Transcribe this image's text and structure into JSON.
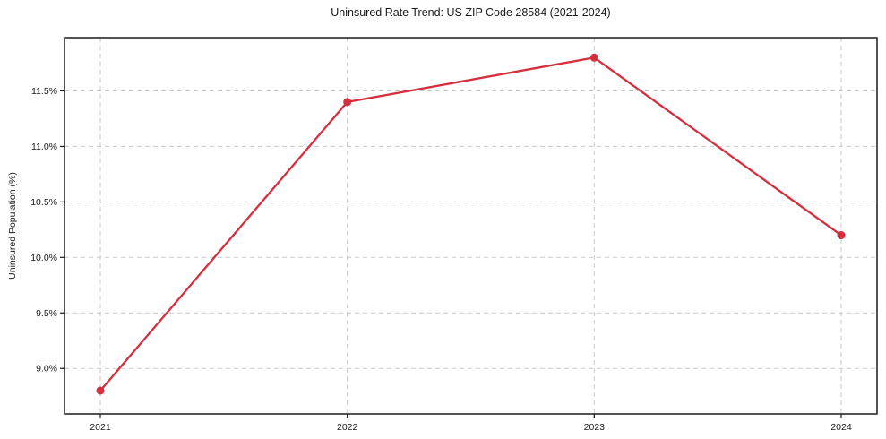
{
  "chart_data": {
    "type": "line",
    "title": "Uninsured Rate Trend: US ZIP Code 28584 (2021-2024)",
    "xlabel": "",
    "ylabel": "Uninsured Population (%)",
    "categories": [
      "2021",
      "2022",
      "2023",
      "2024"
    ],
    "series": [
      {
        "name": "Uninsured Population (%)",
        "values": [
          8.8,
          11.4,
          11.8,
          10.2
        ]
      }
    ],
    "x_tick_labels": [
      "2021",
      "2022",
      "2023",
      "2024"
    ],
    "y_ticks": [
      9.0,
      9.5,
      10.0,
      10.5,
      11.0,
      11.5
    ],
    "y_tick_labels": [
      "9.0%",
      "9.5%",
      "10.0%",
      "10.5%",
      "11.0%",
      "11.5%"
    ],
    "ylim": [
      8.59,
      11.98
    ],
    "grid": true,
    "grid_style": "dashed",
    "legend": "none",
    "line_color": "#d62e3c",
    "marker": "o",
    "grid_color": "#c9c9c9",
    "axis_color": "#1a1a1a",
    "text_color": "#1a1a1a",
    "background_color": "#ffffff"
  }
}
